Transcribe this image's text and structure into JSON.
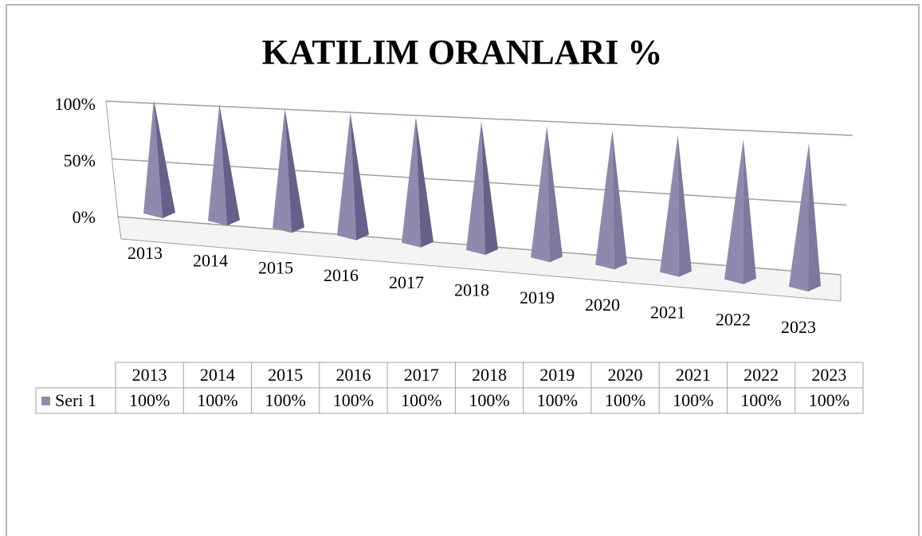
{
  "chart_data": {
    "type": "pyramid3d",
    "title": "KATILIM ORANLARI %",
    "categories": [
      "2013",
      "2014",
      "2015",
      "2016",
      "2017",
      "2018",
      "2019",
      "2020",
      "2021",
      "2022",
      "2023"
    ],
    "series": [
      {
        "name": "Seri 1",
        "color": "#8e8aae",
        "values": [
          100,
          100,
          100,
          100,
          100,
          100,
          100,
          100,
          100,
          100,
          100
        ],
        "value_labels": [
          "100%",
          "100%",
          "100%",
          "100%",
          "100%",
          "100%",
          "100%",
          "100%",
          "100%",
          "100%",
          "100%"
        ]
      }
    ],
    "ylim": [
      0,
      100
    ],
    "yticks": [
      {
        "value": 0,
        "label": "0%"
      },
      {
        "value": 50,
        "label": "50%"
      },
      {
        "value": 100,
        "label": "100%"
      }
    ],
    "grid": true,
    "data_table": true
  }
}
